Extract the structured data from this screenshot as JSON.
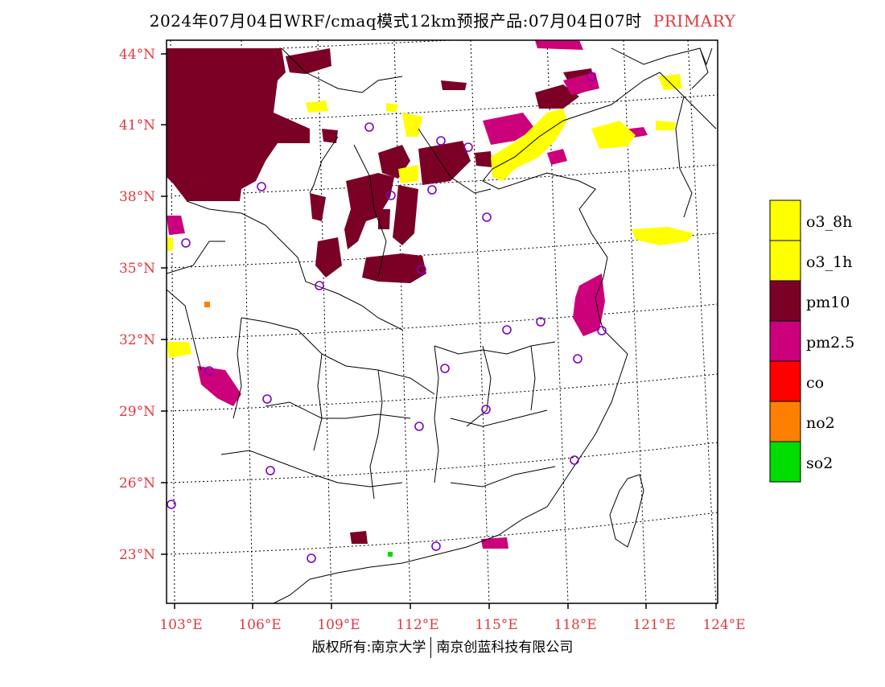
{
  "title": {
    "main": "2024年07月04日WRF/cmaq模式12km预报产品:07月04日07时",
    "tag": "PRIMARY"
  },
  "lat_labels": [
    "44°N",
    "41°N",
    "38°N",
    "35°N",
    "32°N",
    "29°N",
    "26°N",
    "23°N"
  ],
  "lon_labels": [
    "103°E",
    "106°E",
    "109°E",
    "112°E",
    "115°E",
    "118°E",
    "121°E",
    "124°E"
  ],
  "legend": [
    {
      "label": "o3_8h",
      "color": "#ffff00"
    },
    {
      "label": "o3_1h",
      "color": "#ffff00"
    },
    {
      "label": "pm10",
      "color": "#7b0026"
    },
    {
      "label": "pm2.5",
      "color": "#cc007a"
    },
    {
      "label": "co",
      "color": "#ff0000"
    },
    {
      "label": "no2",
      "color": "#ff8000"
    },
    {
      "label": "so2",
      "color": "#00dd00"
    }
  ],
  "footer": {
    "left": "版权所有:南京大学",
    "right": "南京创蓝科技有限公司"
  }
}
